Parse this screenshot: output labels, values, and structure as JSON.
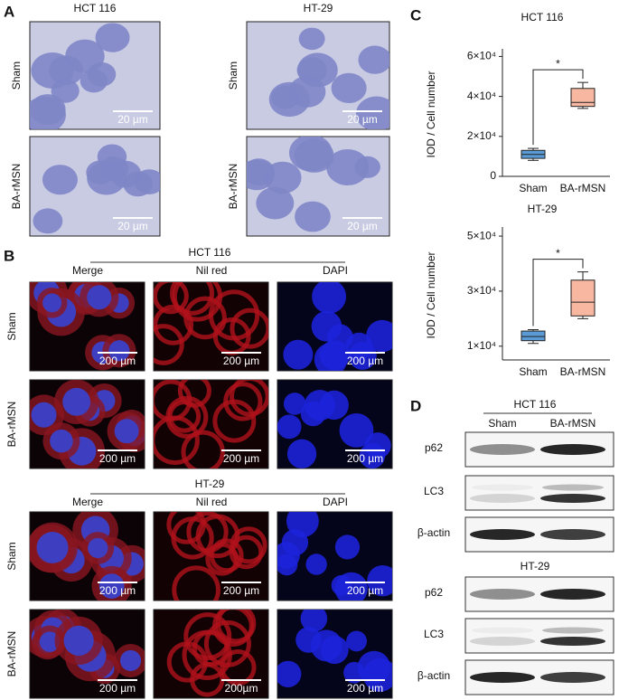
{
  "panel_a": {
    "label": "A",
    "columns": [
      "HCT 116",
      "HT-29"
    ],
    "rows": [
      "Sham",
      "BA-rMSN"
    ],
    "scale_bars": [
      [
        "20 µm",
        "20 µm"
      ],
      [
        "20 µm",
        "20 µm"
      ]
    ]
  },
  "panel_b": {
    "label": "B",
    "groups": [
      {
        "title": "HCT 116",
        "columns": [
          "Merge",
          "Nil red",
          "DAPI"
        ],
        "rows": [
          "Sham",
          "BA-rMSN"
        ],
        "scale_bars": [
          [
            "200 µm",
            "200 µm",
            "200 µm"
          ],
          [
            "200 µm",
            "200 µm",
            "200 µm"
          ]
        ]
      },
      {
        "title": "HT-29",
        "columns": [
          "Merge",
          "Nil red",
          "DAPI"
        ],
        "rows": [
          "Sham",
          "BA-rMSN"
        ],
        "scale_bars": [
          [
            "200 µm",
            "200 µm",
            "200 µm"
          ],
          [
            "200 µm",
            "200µm",
            "200 µm"
          ]
        ]
      }
    ]
  },
  "panel_c": {
    "label": "C"
  },
  "chart_data": [
    {
      "type": "box",
      "title": "HCT 116",
      "y_label": "IOD / Cell number",
      "annotation": "*",
      "categories": [
        "Sham",
        "BA-rMSN"
      ],
      "colors": [
        "#5b9bd5",
        "#f7b7a0"
      ],
      "boxes": [
        {
          "min": 8000,
          "q1": 9000,
          "median": 11000,
          "q3": 13000,
          "max": 14000
        },
        {
          "min": 34000,
          "q1": 35000,
          "median": 37000,
          "q3": 44000,
          "max": 47000
        }
      ],
      "ylim": [
        0,
        62000
      ],
      "yticks": [
        0,
        {
          "value": 20000,
          "label": "2×10⁴"
        },
        {
          "value": 40000,
          "label": "4×10⁴"
        },
        {
          "value": 60000,
          "label": "6×10⁴"
        }
      ]
    },
    {
      "type": "box",
      "title": "HT-29",
      "y_label": "IOD / Cell number",
      "annotation": "*",
      "categories": [
        "Sham",
        "BA-rMSN"
      ],
      "colors": [
        "#5b9bd5",
        "#f7b7a0"
      ],
      "boxes": [
        {
          "min": 11000,
          "q1": 12000,
          "median": 13500,
          "q3": 15500,
          "max": 16000
        },
        {
          "min": 20000,
          "q1": 21000,
          "median": 26000,
          "q3": 34000,
          "max": 37000
        }
      ],
      "ylim": [
        5000,
        52000
      ],
      "yticks": [
        {
          "value": 10000,
          "label": "1×10⁴"
        },
        {
          "value": 30000,
          "label": "3×10⁴"
        },
        {
          "value": 50000,
          "label": "5×10⁴"
        }
      ]
    }
  ],
  "panel_d": {
    "label": "D",
    "groups": [
      {
        "title": "HCT 116",
        "columns": [
          "Sham",
          "BA-rMSN"
        ],
        "rows": [
          "p62",
          "LC3",
          "β-actin"
        ]
      },
      {
        "title": "HT-29",
        "rows": [
          "p62",
          "LC3",
          "β-actin"
        ]
      }
    ]
  }
}
